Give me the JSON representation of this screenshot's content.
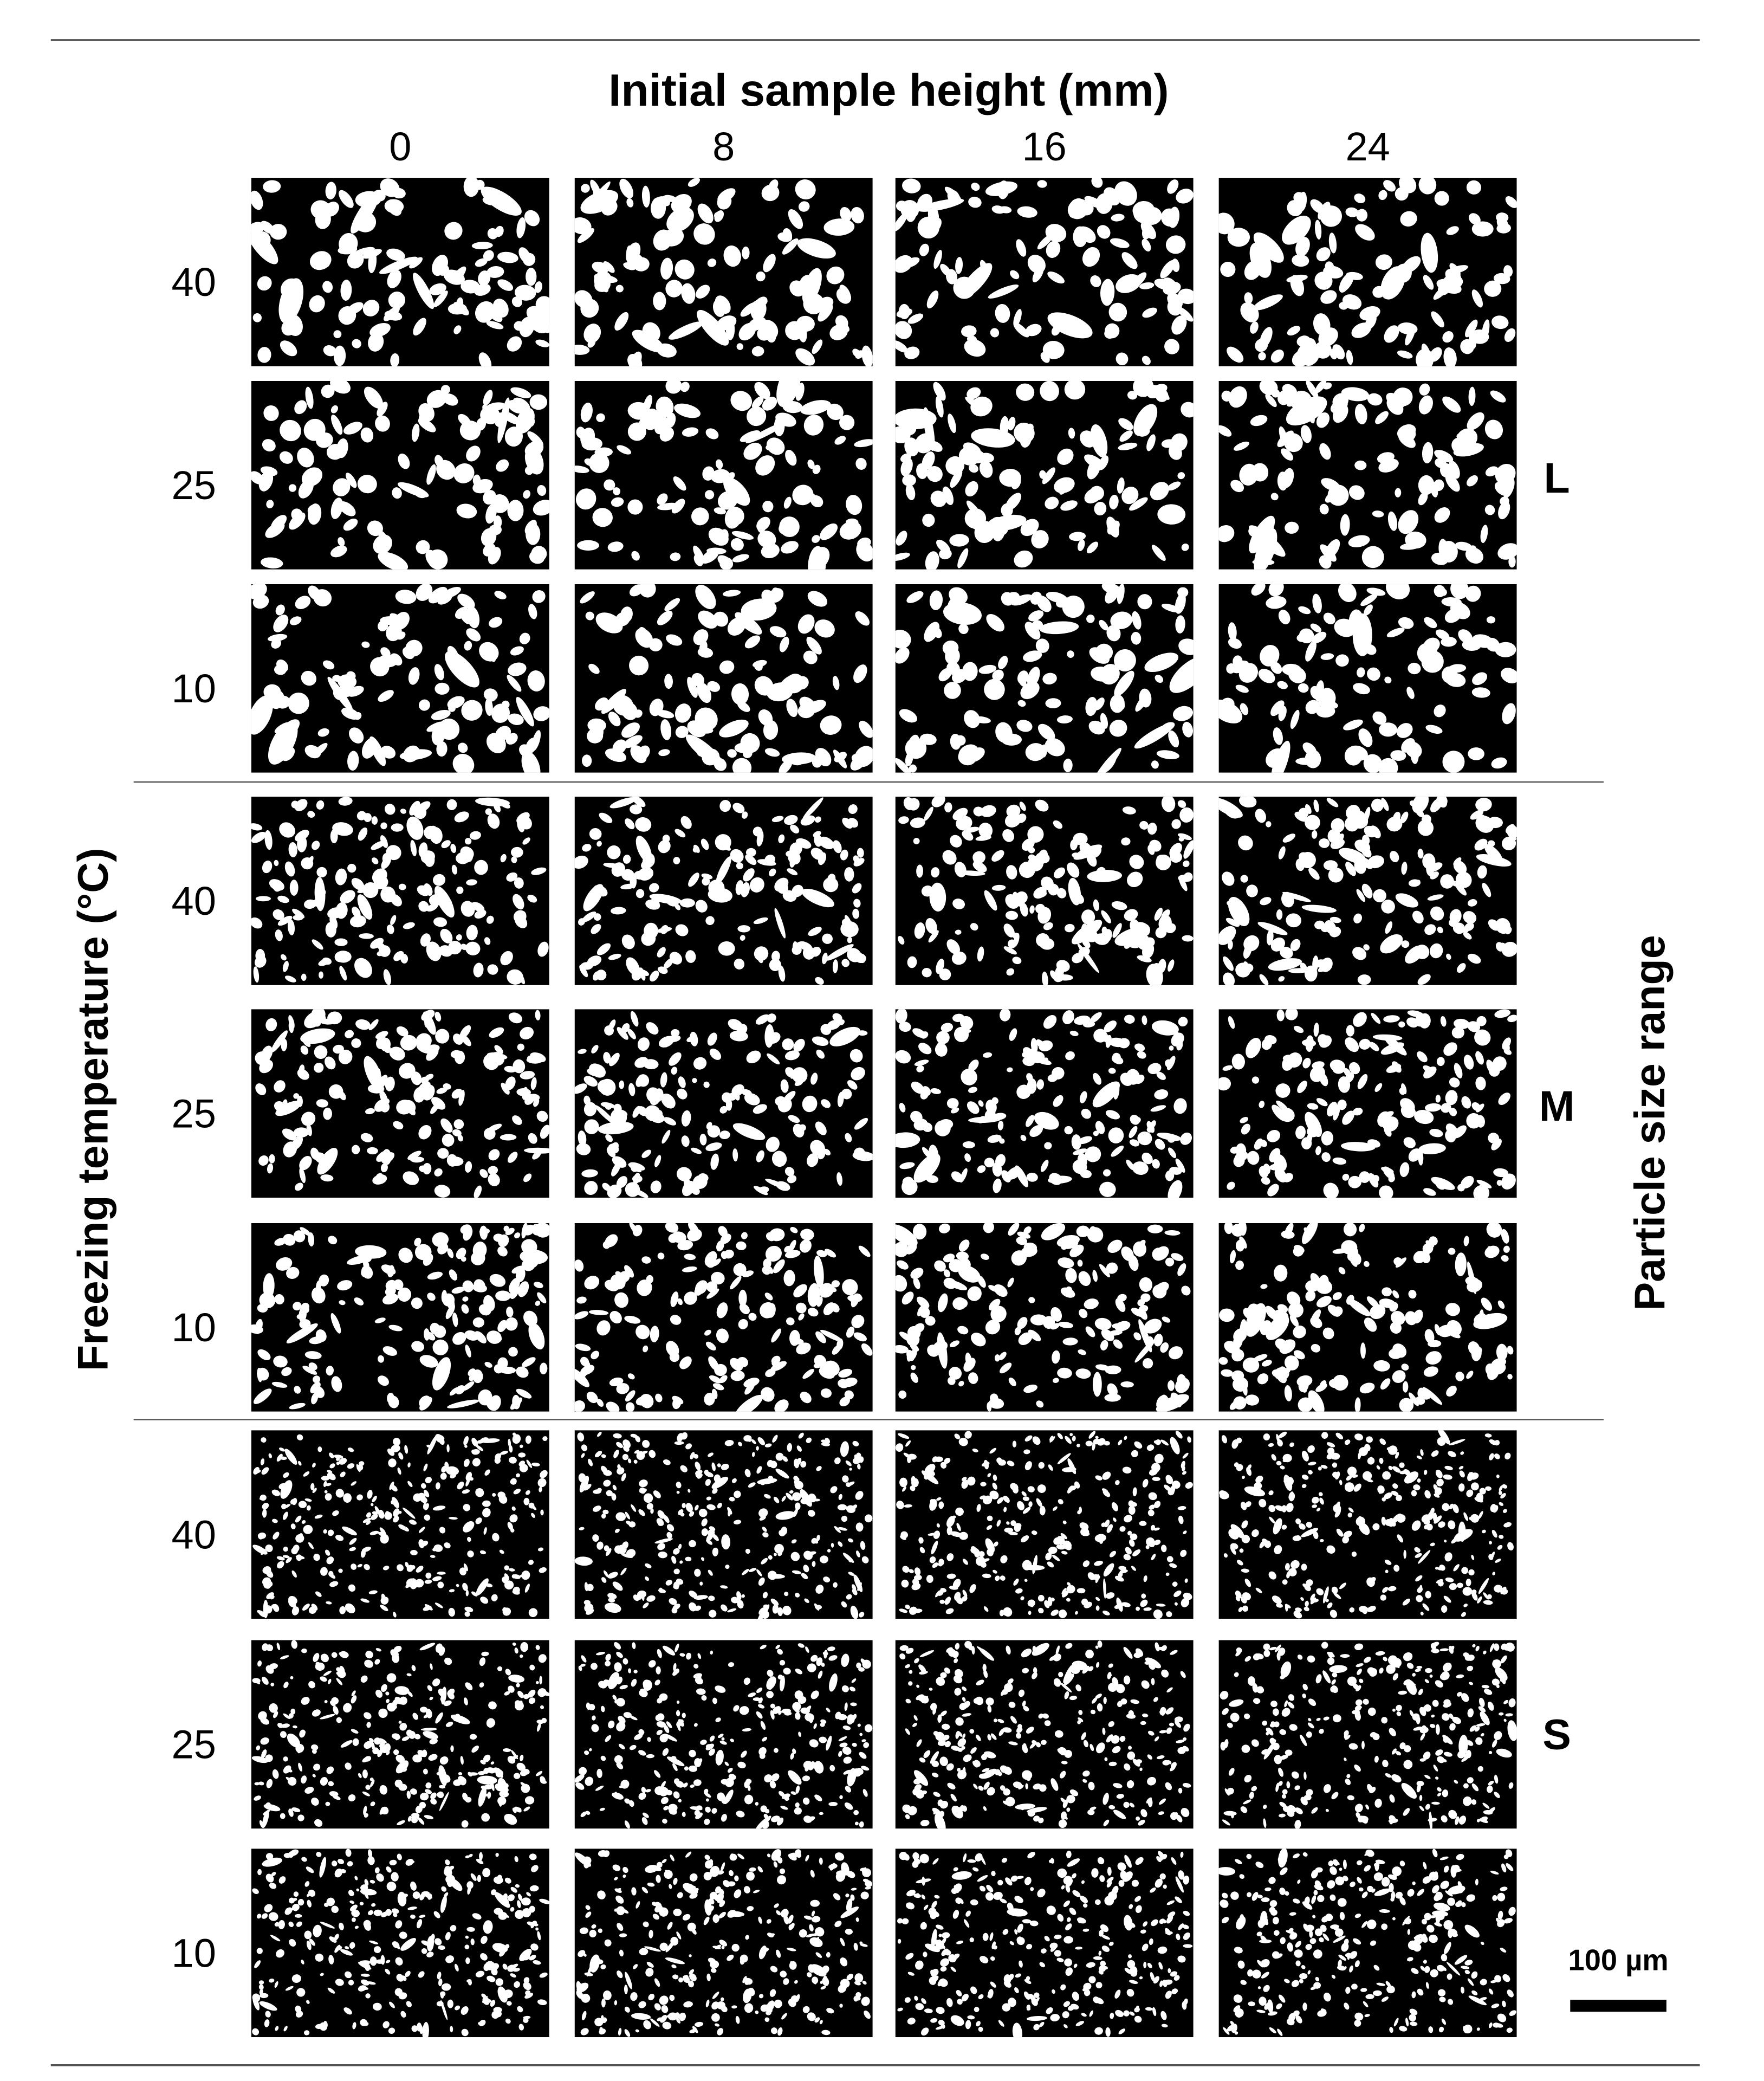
{
  "column_header": {
    "title": "Initial sample height (mm)",
    "labels": [
      "0",
      "8",
      "16",
      "24"
    ]
  },
  "row_axis_label": "Freezing temperature (°C)",
  "group_axis_label": "Particle size range",
  "groups": [
    {
      "label": "L",
      "rows": [
        "40",
        "25",
        "10"
      ]
    },
    {
      "label": "M",
      "rows": [
        "40",
        "25",
        "10"
      ]
    },
    {
      "label": "S",
      "rows": [
        "40",
        "25",
        "10"
      ]
    }
  ],
  "scale_bar": "100 µm"
}
